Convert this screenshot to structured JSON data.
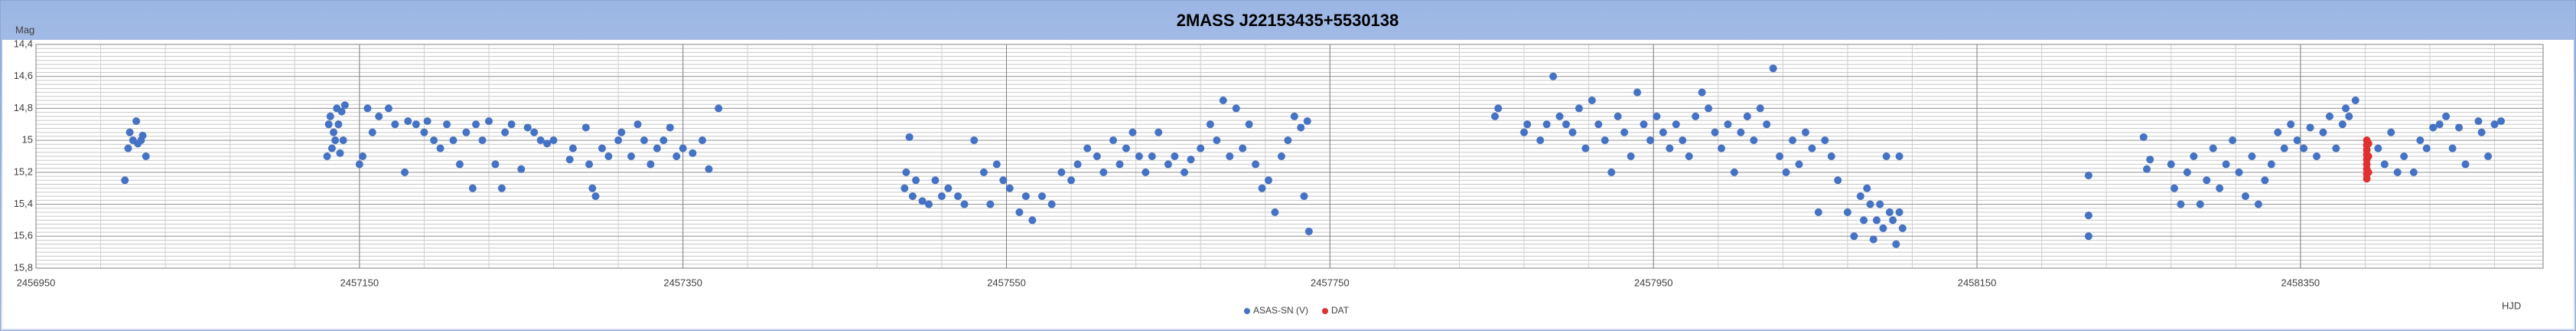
{
  "chart_data": {
    "type": "scatter",
    "title": "2MASS J22153435+5530138",
    "y_label": "Mag",
    "x_label": "HJD",
    "y_inverted": true,
    "grid": true,
    "legend": "bottom",
    "xlim": [
      2456950,
      2458500
    ],
    "xticks": [
      2456950,
      2457150,
      2457350,
      2457550,
      2457750,
      2457950,
      2458150,
      2458350
    ],
    "ylim": [
      14.4,
      15.8
    ],
    "yticks": [
      {
        "value": 14.4,
        "label": "14,4"
      },
      {
        "value": 14.6,
        "label": "14,6"
      },
      {
        "value": 14.8,
        "label": "14,8"
      },
      15,
      {
        "value": 15.2,
        "label": "15,2"
      },
      {
        "value": 15.4,
        "label": "15,4"
      },
      {
        "value": 15.6,
        "label": "15,6"
      },
      {
        "value": 15.8,
        "label": "15,8"
      }
    ],
    "series": [
      {
        "name": "ASAS-SN (V)",
        "color": "#4472c4",
        "x": [
          2457005,
          2457007,
          2457008,
          2457010,
          2457012,
          2457013,
          2457015,
          2457016,
          2457018,
          2457130,
          2457131,
          2457132,
          2457133,
          2457134,
          2457135,
          2457136,
          2457137,
          2457138,
          2457139,
          2457140,
          2457141,
          2457150,
          2457152,
          2457155,
          2457158,
          2457162,
          2457168,
          2457172,
          2457178,
          2457180,
          2457185,
          2457190,
          2457192,
          2457196,
          2457200,
          2457204,
          2457208,
          2457212,
          2457216,
          2457220,
          2457222,
          2457226,
          2457230,
          2457234,
          2457238,
          2457240,
          2457244,
          2457250,
          2457254,
          2457258,
          2457262,
          2457266,
          2457270,
          2457280,
          2457282,
          2457290,
          2457292,
          2457294,
          2457296,
          2457300,
          2457304,
          2457310,
          2457312,
          2457318,
          2457322,
          2457326,
          2457330,
          2457334,
          2457338,
          2457342,
          2457346,
          2457350,
          2457356,
          2457362,
          2457366,
          2457372,
          2457487,
          2457488,
          2457490,
          2457492,
          2457494,
          2457498,
          2457502,
          2457506,
          2457510,
          2457514,
          2457520,
          2457524,
          2457530,
          2457536,
          2457540,
          2457544,
          2457548,
          2457552,
          2457558,
          2457562,
          2457566,
          2457572,
          2457578,
          2457584,
          2457590,
          2457594,
          2457600,
          2457606,
          2457610,
          2457616,
          2457620,
          2457624,
          2457628,
          2457632,
          2457636,
          2457640,
          2457644,
          2457650,
          2457654,
          2457660,
          2457664,
          2457670,
          2457676,
          2457680,
          2457684,
          2457688,
          2457692,
          2457696,
          2457700,
          2457704,
          2457708,
          2457712,
          2457716,
          2457720,
          2457724,
          2457728,
          2457732,
          2457734,
          2457736,
          2457737,
          2457852,
          2457854,
          2457870,
          2457872,
          2457880,
          2457884,
          2457888,
          2457892,
          2457896,
          2457900,
          2457904,
          2457908,
          2457912,
          2457916,
          2457920,
          2457924,
          2457928,
          2457932,
          2457936,
          2457940,
          2457944,
          2457948,
          2457952,
          2457956,
          2457960,
          2457964,
          2457968,
          2457972,
          2457976,
          2457980,
          2457984,
          2457988,
          2457992,
          2457996,
          2458000,
          2458004,
          2458008,
          2458012,
          2458016,
          2458020,
          2458024,
          2458028,
          2458032,
          2458036,
          2458040,
          2458044,
          2458048,
          2458052,
          2458056,
          2458060,
          2458064,
          2458070,
          2458074,
          2458078,
          2458080,
          2458082,
          2458084,
          2458086,
          2458088,
          2458090,
          2458092,
          2458094,
          2458096,
          2458098,
          2458100,
          2458102,
          2458104,
          2458102,
          2458219,
          2458219,
          2458219,
          2458253,
          2458255,
          2458257,
          2458270,
          2458272,
          2458276,
          2458280,
          2458284,
          2458288,
          2458292,
          2458296,
          2458300,
          2458304,
          2458308,
          2458312,
          2458316,
          2458320,
          2458324,
          2458328,
          2458332,
          2458336,
          2458340,
          2458344,
          2458348,
          2458352,
          2458356,
          2458360,
          2458364,
          2458368,
          2458372,
          2458376,
          2458378,
          2458380,
          2458384,
          2458398,
          2458402,
          2458406,
          2458410,
          2458414,
          2458420,
          2458424,
          2458428,
          2458432,
          2458436,
          2458440,
          2458444,
          2458448,
          2458452,
          2458460,
          2458462,
          2458466,
          2458470,
          2458474
        ],
        "values": [
          15.25,
          15.05,
          14.95,
          15.0,
          14.88,
          15.02,
          15.0,
          14.97,
          15.1,
          15.1,
          14.9,
          14.85,
          15.05,
          14.95,
          15.0,
          14.8,
          14.9,
          15.08,
          14.82,
          15.0,
          14.78,
          15.15,
          15.1,
          14.8,
          14.95,
          14.85,
          14.8,
          14.9,
          15.2,
          14.88,
          14.9,
          14.95,
          14.88,
          15.0,
          15.05,
          14.9,
          15.0,
          15.15,
          14.95,
          15.3,
          14.9,
          15.0,
          14.88,
          15.15,
          15.3,
          14.95,
          14.9,
          15.18,
          14.92,
          14.95,
          15.0,
          15.02,
          15.0,
          15.12,
          15.05,
          14.92,
          15.15,
          15.3,
          15.35,
          15.05,
          15.1,
          15.0,
          14.95,
          15.1,
          14.9,
          15.0,
          15.15,
          15.05,
          15.0,
          14.92,
          15.1,
          15.05,
          15.08,
          15.0,
          15.18,
          14.8,
          15.3,
          15.2,
          14.98,
          15.35,
          15.25,
          15.38,
          15.4,
          15.25,
          15.35,
          15.3,
          15.35,
          15.4,
          15.0,
          15.2,
          15.4,
          15.15,
          15.25,
          15.3,
          15.45,
          15.35,
          15.5,
          15.35,
          15.4,
          15.2,
          15.25,
          15.15,
          15.05,
          15.1,
          15.2,
          15.0,
          15.15,
          15.05,
          14.95,
          15.1,
          15.2,
          15.1,
          14.95,
          15.15,
          15.1,
          15.2,
          15.12,
          15.05,
          14.9,
          15.0,
          14.75,
          15.1,
          14.8,
          15.05,
          14.9,
          15.15,
          15.3,
          15.25,
          15.45,
          15.1,
          15.0,
          14.85,
          14.92,
          15.35,
          14.88,
          15.57,
          14.85,
          14.8,
          14.95,
          14.9,
          15.0,
          14.9,
          14.6,
          14.85,
          14.9,
          14.95,
          14.8,
          15.05,
          14.75,
          14.9,
          15.0,
          15.2,
          14.85,
          14.95,
          15.1,
          14.7,
          14.9,
          15.0,
          14.85,
          14.95,
          15.05,
          14.9,
          15.0,
          15.1,
          14.85,
          14.7,
          14.8,
          14.95,
          15.05,
          14.9,
          15.2,
          14.95,
          14.85,
          15.0,
          14.8,
          14.9,
          14.55,
          15.1,
          15.2,
          15.0,
          15.15,
          14.95,
          15.05,
          15.45,
          15.0,
          15.1,
          15.25,
          15.45,
          15.6,
          15.35,
          15.5,
          15.3,
          15.4,
          15.62,
          15.5,
          15.4,
          15.55,
          15.1,
          15.45,
          15.5,
          15.65,
          15.45,
          15.55,
          15.1,
          15.22,
          15.47,
          15.6,
          14.98,
          15.18,
          15.12,
          15.15,
          15.3,
          15.4,
          15.2,
          15.1,
          15.4,
          15.25,
          15.05,
          15.3,
          15.15,
          15.0,
          15.2,
          15.35,
          15.1,
          15.4,
          15.25,
          15.15,
          14.95,
          15.05,
          14.9,
          15.0,
          15.05,
          14.92,
          15.1,
          14.95,
          14.85,
          15.05,
          14.9,
          14.8,
          14.85,
          14.75,
          15.05,
          15.15,
          14.95,
          15.2,
          15.1,
          15.2,
          15.0,
          15.05,
          14.92,
          14.9,
          14.85,
          15.05,
          14.92,
          15.15,
          14.88,
          14.95,
          15.1,
          14.9,
          14.88
        ]
      },
      {
        "name": "DAT",
        "color": "#e0302f",
        "x": [
          2458391,
          2458391,
          2458391,
          2458391,
          2458391,
          2458391,
          2458391,
          2458391,
          2458391,
          2458392,
          2458392,
          2458392
        ],
        "values": [
          15.0,
          15.03,
          15.06,
          15.09,
          15.12,
          15.15,
          15.18,
          15.21,
          15.24,
          15.02,
          15.1,
          15.2
        ]
      }
    ]
  }
}
